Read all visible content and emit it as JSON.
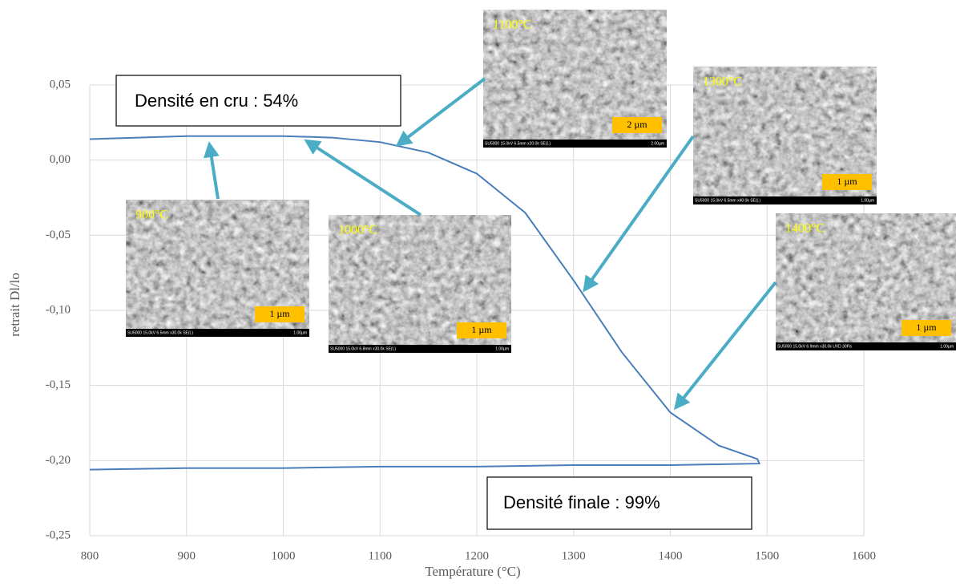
{
  "chart_data": {
    "type": "line",
    "y_label": "retrait Dl/lo",
    "x_label": "Température (°C)",
    "x": [
      800,
      850,
      900,
      950,
      1000,
      1050,
      1100,
      1150,
      1200,
      1250,
      1300,
      1350,
      1400,
      1450,
      1490,
      1492,
      1400,
      1300,
      1200,
      1100,
      1000,
      900,
      800
    ],
    "values": [
      0.014,
      0.015,
      0.016,
      0.016,
      0.016,
      0.015,
      0.012,
      0.005,
      -0.009,
      -0.035,
      -0.08,
      -0.128,
      -0.168,
      -0.19,
      -0.199,
      -0.202,
      -0.203,
      -0.203,
      -0.204,
      -0.204,
      -0.205,
      -0.205,
      -0.206
    ],
    "color": "#4a7ebb",
    "xlim": [
      800,
      1600
    ],
    "xticks": [
      800,
      900,
      1000,
      1100,
      1200,
      1300,
      1400,
      1500,
      1600
    ],
    "ylim": [
      -0.25,
      0.05
    ],
    "yticks": [
      {
        "value": -0.25,
        "label": "-0,25"
      },
      {
        "value": -0.2,
        "label": "-0,20"
      },
      {
        "value": -0.15,
        "label": "-0,15"
      },
      {
        "value": -0.1,
        "label": "-0,10"
      },
      {
        "value": -0.05,
        "label": "-0,05"
      },
      {
        "value": 0,
        "label": "0,00"
      },
      {
        "value": 0.05,
        "label": "0,05"
      }
    ],
    "grid": true,
    "annotations": [
      "Densité en cru : 54%",
      "Densité finale : 99%"
    ],
    "images": [
      {
        "label": "900°C",
        "scale": "1 µm",
        "footer": "SU5000 15.0kV 6.5mm x30.0k SE(L)",
        "footer_right": "1.00µm"
      },
      {
        "label": "1000°C",
        "scale": "1 µm",
        "footer": "SU5000 15.0kV 6.8mm x30.0k SE(L)",
        "footer_right": "1.00µm"
      },
      {
        "label": "1100°C",
        "scale": "2 µm",
        "footer": "SU5000 15.0kV 6.5mm x20.0k SE(L)",
        "footer_right": "2.00µm"
      },
      {
        "label": "1300°C",
        "scale": "1 µm",
        "footer": "SU5000 15.0kV 6.5mm x40.0k SE(L)",
        "footer_right": "1.00µm"
      },
      {
        "label": "1400°C",
        "scale": "1 µm",
        "footer": "SU5000 15.0kV 6.9mm x30.0k UVD 30Pa",
        "footer_right": "1.00µm"
      }
    ]
  }
}
